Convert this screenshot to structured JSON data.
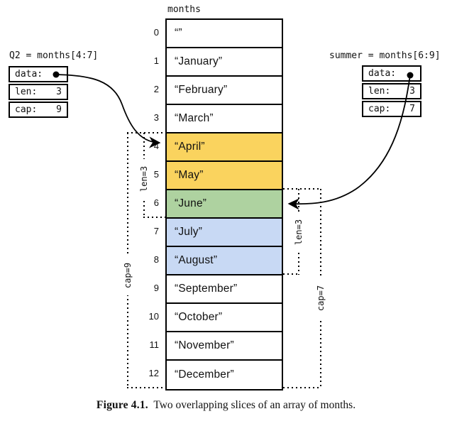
{
  "figure": {
    "caption_label": "Figure 4.1.",
    "caption_text": "Two overlapping slices of an array of months."
  },
  "array": {
    "title": "months",
    "cells": [
      {
        "index": "0",
        "value": "“”",
        "bg": "#FFFFFF"
      },
      {
        "index": "1",
        "value": "“January”",
        "bg": "#FFFFFF"
      },
      {
        "index": "2",
        "value": "“February”",
        "bg": "#FFFFFF"
      },
      {
        "index": "3",
        "value": "“March”",
        "bg": "#FFFFFF"
      },
      {
        "index": "4",
        "value": "“April”",
        "bg": "#FAD35E"
      },
      {
        "index": "5",
        "value": "“May”",
        "bg": "#FAD35E"
      },
      {
        "index": "6",
        "value": "“June”",
        "bg": "#AED2A0"
      },
      {
        "index": "7",
        "value": "“July”",
        "bg": "#C8D9F4"
      },
      {
        "index": "8",
        "value": "“August”",
        "bg": "#C8D9F4"
      },
      {
        "index": "9",
        "value": "“September”",
        "bg": "#FFFFFF"
      },
      {
        "index": "10",
        "value": "“October”",
        "bg": "#FFFFFF"
      },
      {
        "index": "11",
        "value": "“November”",
        "bg": "#FFFFFF"
      },
      {
        "index": "12",
        "value": "“December”",
        "bg": "#FFFFFF"
      }
    ]
  },
  "slices": {
    "q2": {
      "title": "Q2 = months[4:7]",
      "pointer_icon": "filled-dot",
      "rows": [
        {
          "label": "data:",
          "value": ""
        },
        {
          "label": "len:",
          "value": "3"
        },
        {
          "label": "cap:",
          "value": "9"
        }
      ]
    },
    "summer": {
      "title": "summer = months[6:9]",
      "pointer_icon": "filled-dot",
      "rows": [
        {
          "label": "data:",
          "value": ""
        },
        {
          "label": "len:",
          "value": "3"
        },
        {
          "label": "cap:",
          "value": "7"
        }
      ]
    }
  },
  "brackets": {
    "left": {
      "len": "len=3",
      "cap": "cap=9"
    },
    "right": {
      "len": "len=3",
      "cap": "cap=7"
    }
  },
  "colors": {
    "q2_highlight": "#FAD35E",
    "overlap_highlight": "#AED2A0",
    "summer_highlight": "#C8D9F4",
    "line": "#000000"
  }
}
